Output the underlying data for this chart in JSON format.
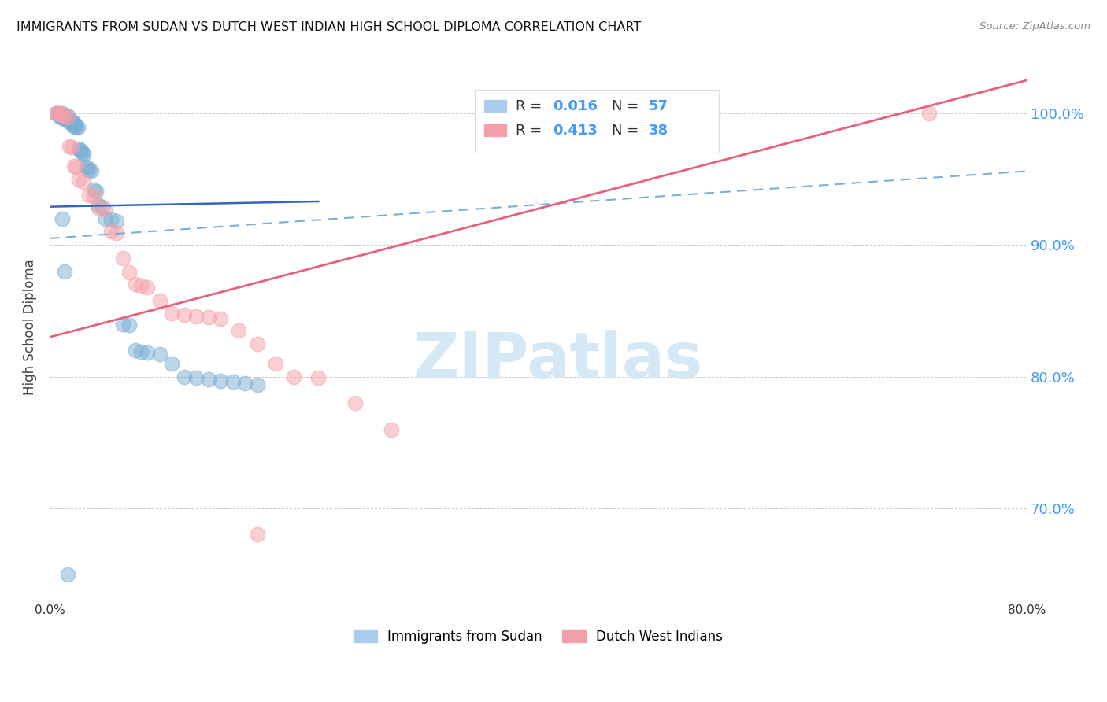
{
  "title": "IMMIGRANTS FROM SUDAN VS DUTCH WEST INDIAN HIGH SCHOOL DIPLOMA CORRELATION CHART",
  "source": "Source: ZipAtlas.com",
  "ylabel": "High School Diploma",
  "y_ticks": [
    0.7,
    0.8,
    0.9,
    1.0
  ],
  "y_tick_labels": [
    "70.0%",
    "80.0%",
    "90.0%",
    "100.0%"
  ],
  "x_ticks": [
    0.0,
    0.16,
    0.32,
    0.48,
    0.64,
    0.8
  ],
  "xlim": [
    0.0,
    0.8
  ],
  "ylim": [
    0.63,
    1.045
  ],
  "legend_blue_label": "Immigrants from Sudan",
  "legend_pink_label": "Dutch West Indians",
  "blue_color": "#7BAFD4",
  "pink_color": "#F4A0A8",
  "blue_scatter_x": [
    0.005,
    0.007,
    0.008,
    0.009,
    0.01,
    0.01,
    0.011,
    0.012,
    0.012,
    0.013,
    0.014,
    0.015,
    0.015,
    0.016,
    0.016,
    0.017,
    0.018,
    0.019,
    0.02,
    0.02,
    0.02,
    0.021,
    0.022,
    0.023,
    0.024,
    0.025,
    0.026,
    0.027,
    0.028,
    0.03,
    0.031,
    0.032,
    0.034,
    0.036,
    0.038,
    0.04,
    0.043,
    0.046,
    0.05,
    0.055,
    0.06,
    0.065,
    0.07,
    0.075,
    0.08,
    0.09,
    0.1,
    0.11,
    0.12,
    0.13,
    0.14,
    0.15,
    0.16,
    0.17,
    0.01,
    0.012,
    0.015
  ],
  "blue_scatter_y": [
    1.0,
    1.0,
    0.998,
    0.997,
    1.0,
    0.998,
    0.997,
    0.996,
    0.999,
    0.995,
    0.997,
    0.996,
    0.998,
    0.995,
    0.994,
    0.993,
    0.994,
    0.992,
    0.993,
    0.991,
    0.99,
    0.991,
    0.99,
    0.989,
    0.973,
    0.972,
    0.971,
    0.97,
    0.969,
    0.959,
    0.958,
    0.957,
    0.956,
    0.942,
    0.941,
    0.93,
    0.929,
    0.92,
    0.919,
    0.918,
    0.84,
    0.839,
    0.82,
    0.819,
    0.818,
    0.817,
    0.81,
    0.8,
    0.799,
    0.798,
    0.797,
    0.796,
    0.795,
    0.794,
    0.92,
    0.88,
    0.65
  ],
  "pink_scatter_x": [
    0.005,
    0.007,
    0.008,
    0.01,
    0.012,
    0.014,
    0.016,
    0.018,
    0.02,
    0.022,
    0.024,
    0.028,
    0.032,
    0.036,
    0.04,
    0.045,
    0.05,
    0.055,
    0.06,
    0.065,
    0.07,
    0.075,
    0.08,
    0.09,
    0.1,
    0.11,
    0.12,
    0.13,
    0.14,
    0.155,
    0.17,
    0.185,
    0.2,
    0.22,
    0.25,
    0.28,
    0.72,
    0.17
  ],
  "pink_scatter_y": [
    1.0,
    1.0,
    1.0,
    0.999,
    0.998,
    0.997,
    0.975,
    0.974,
    0.96,
    0.959,
    0.95,
    0.948,
    0.938,
    0.937,
    0.928,
    0.927,
    0.91,
    0.909,
    0.89,
    0.879,
    0.87,
    0.869,
    0.868,
    0.858,
    0.848,
    0.847,
    0.846,
    0.845,
    0.844,
    0.835,
    0.825,
    0.81,
    0.8,
    0.799,
    0.78,
    0.76,
    1.0,
    0.68
  ],
  "blue_solid_line": {
    "x0": 0.0,
    "x1": 0.22,
    "y0": 0.929,
    "y1": 0.933
  },
  "blue_dashed_line": {
    "x0": 0.0,
    "x1": 0.8,
    "y0": 0.905,
    "y1": 0.956
  },
  "pink_solid_line": {
    "x0": 0.0,
    "x1": 0.8,
    "y0": 0.83,
    "y1": 1.025
  },
  "blue_line_color": "#3366BB",
  "blue_dashed_color": "#7BAFD4",
  "pink_line_color": "#E8607A",
  "grid_color": "#CCCCCC",
  "watermark_text": "ZIPatlas",
  "watermark_color": "#D5E8F5",
  "legend_r_color": "#333333",
  "legend_n_color": "#4499FF",
  "legend_val_color": "#4499FF"
}
